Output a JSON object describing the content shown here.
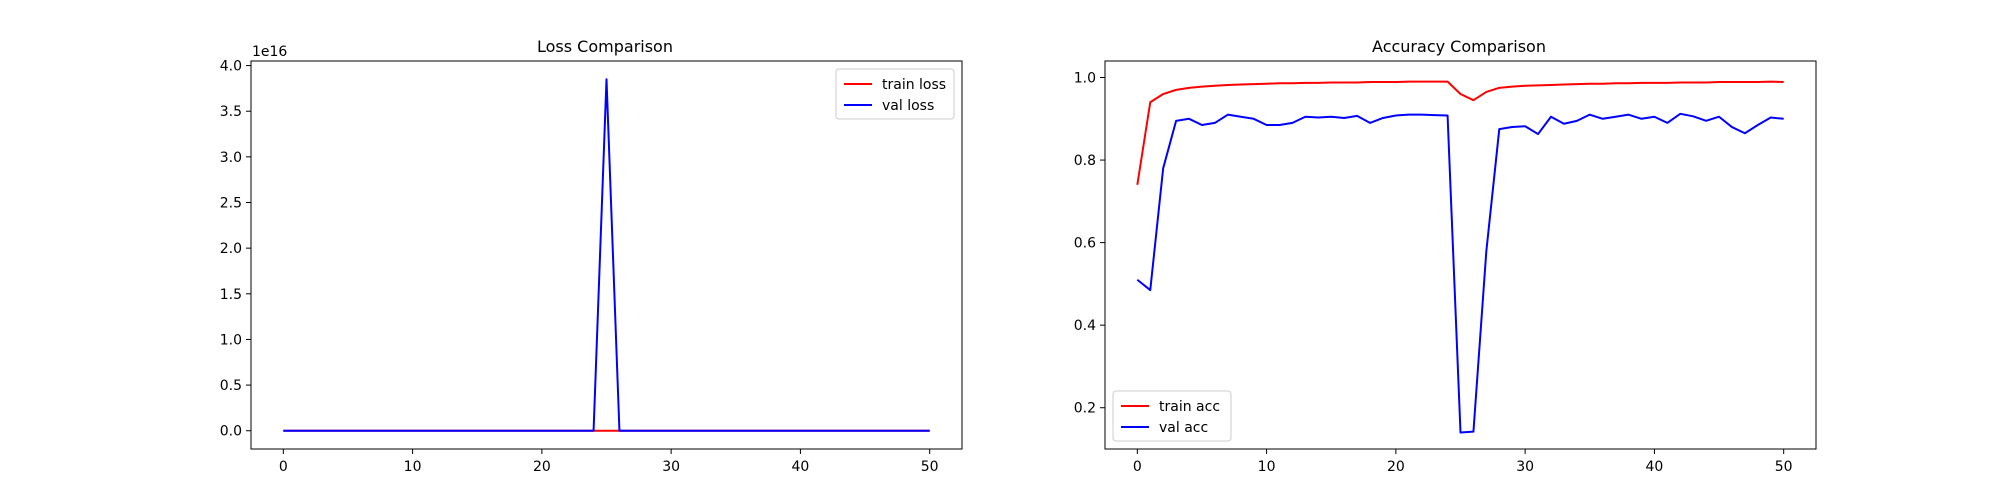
{
  "figure": {
    "background": "#ffffff"
  },
  "chart_data": [
    {
      "type": "line",
      "title": "Loss Comparison",
      "xlabel": "",
      "ylabel": "",
      "xlim": [
        -2.5,
        52.5
      ],
      "ylim": [
        -0.2,
        4.05
      ],
      "y_offset_label": "1e16",
      "x_ticks": [
        0,
        10,
        20,
        30,
        40,
        50
      ],
      "x_tick_labels": [
        "0",
        "10",
        "20",
        "30",
        "40",
        "50"
      ],
      "y_ticks": [
        0.0,
        0.5,
        1.0,
        1.5,
        2.0,
        2.5,
        3.0,
        3.5,
        4.0
      ],
      "y_tick_labels": [
        "0.0",
        "0.5",
        "1.0",
        "1.5",
        "2.0",
        "2.5",
        "3.0",
        "3.5",
        "4.0"
      ],
      "legend": {
        "placement": "top-right"
      },
      "grid": false,
      "x": [
        0,
        1,
        2,
        3,
        4,
        5,
        6,
        7,
        8,
        9,
        10,
        11,
        12,
        13,
        14,
        15,
        16,
        17,
        18,
        19,
        20,
        21,
        22,
        23,
        24,
        25,
        26,
        27,
        28,
        29,
        30,
        31,
        32,
        33,
        34,
        35,
        36,
        37,
        38,
        39,
        40,
        41,
        42,
        43,
        44,
        45,
        46,
        47,
        48,
        49,
        50
      ],
      "series": [
        {
          "name": "train loss",
          "color": "#ff0000",
          "values": [
            0,
            0,
            0,
            0,
            0,
            0,
            0,
            0,
            0,
            0,
            0,
            0,
            0,
            0,
            0,
            0,
            0,
            0,
            0,
            0,
            0,
            0,
            0,
            0,
            0,
            0,
            0,
            0,
            0,
            0,
            0,
            0,
            0,
            0,
            0,
            0,
            0,
            0,
            0,
            0,
            0,
            0,
            0,
            0,
            0,
            0,
            0,
            0,
            0,
            0,
            0
          ]
        },
        {
          "name": "val loss",
          "color": "#0000ff",
          "values": [
            0,
            0,
            0,
            0,
            0,
            0,
            0,
            0,
            0,
            0,
            0,
            0,
            0,
            0,
            0,
            0,
            0,
            0,
            0,
            0,
            0,
            0,
            0,
            0,
            0,
            3.85,
            0,
            0,
            0,
            0,
            0,
            0,
            0,
            0,
            0,
            0,
            0,
            0,
            0,
            0,
            0,
            0,
            0,
            0,
            0,
            0,
            0,
            0,
            0,
            0,
            0
          ]
        }
      ]
    },
    {
      "type": "line",
      "title": "Accuracy Comparison",
      "xlabel": "",
      "ylabel": "",
      "xlim": [
        -2.5,
        52.5
      ],
      "ylim": [
        0.1,
        1.04
      ],
      "y_offset_label": "",
      "x_ticks": [
        0,
        10,
        20,
        30,
        40,
        50
      ],
      "x_tick_labels": [
        "0",
        "10",
        "20",
        "30",
        "40",
        "50"
      ],
      "y_ticks": [
        0.2,
        0.4,
        0.6,
        0.8,
        1.0
      ],
      "y_tick_labels": [
        "0.2",
        "0.4",
        "0.6",
        "0.8",
        "1.0"
      ],
      "legend": {
        "placement": "bottom-left"
      },
      "grid": false,
      "x": [
        0,
        1,
        2,
        3,
        4,
        5,
        6,
        7,
        8,
        9,
        10,
        11,
        12,
        13,
        14,
        15,
        16,
        17,
        18,
        19,
        20,
        21,
        22,
        23,
        24,
        25,
        26,
        27,
        28,
        29,
        30,
        31,
        32,
        33,
        34,
        35,
        36,
        37,
        38,
        39,
        40,
        41,
        42,
        43,
        44,
        45,
        46,
        47,
        48,
        49,
        50
      ],
      "series": [
        {
          "name": "train acc",
          "color": "#ff0000",
          "values": [
            0.74,
            0.94,
            0.96,
            0.97,
            0.975,
            0.978,
            0.98,
            0.982,
            0.983,
            0.984,
            0.985,
            0.986,
            0.986,
            0.987,
            0.987,
            0.988,
            0.988,
            0.988,
            0.989,
            0.989,
            0.989,
            0.99,
            0.99,
            0.99,
            0.99,
            0.96,
            0.945,
            0.965,
            0.975,
            0.978,
            0.98,
            0.981,
            0.982,
            0.983,
            0.984,
            0.985,
            0.985,
            0.986,
            0.986,
            0.987,
            0.987,
            0.987,
            0.988,
            0.988,
            0.988,
            0.989,
            0.989,
            0.989,
            0.989,
            0.99,
            0.989
          ]
        },
        {
          "name": "val acc",
          "color": "#0000ff",
          "values": [
            0.51,
            0.485,
            0.78,
            0.895,
            0.9,
            0.885,
            0.89,
            0.91,
            0.905,
            0.9,
            0.885,
            0.885,
            0.89,
            0.905,
            0.903,
            0.905,
            0.902,
            0.907,
            0.89,
            0.902,
            0.908,
            0.91,
            0.91,
            0.909,
            0.908,
            0.14,
            0.142,
            0.58,
            0.875,
            0.88,
            0.882,
            0.863,
            0.905,
            0.888,
            0.895,
            0.91,
            0.9,
            0.905,
            0.91,
            0.9,
            0.905,
            0.89,
            0.912,
            0.906,
            0.895,
            0.905,
            0.88,
            0.865,
            0.885,
            0.903,
            0.9
          ]
        }
      ]
    }
  ]
}
